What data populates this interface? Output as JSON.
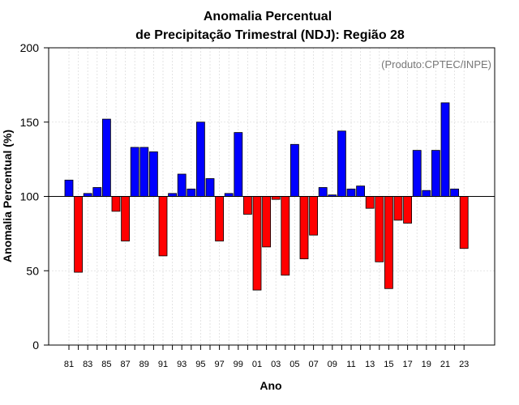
{
  "chart_data": {
    "type": "bar",
    "title_line1": "Anomalia Percentual",
    "title_line2": "de Precipitação Trimestral (NDJ): Região 28",
    "credit": "(Produto:CPTEC/INPE)",
    "xlabel": "Ano",
    "ylabel": "Anomalia Percentual (%)",
    "ylim": [
      0,
      200
    ],
    "yticks": [
      "0",
      "50",
      "100",
      "150",
      "200"
    ],
    "baseline": 100,
    "grid": true,
    "colors": {
      "above": "#0000ff",
      "below": "#ff0000"
    },
    "categories": [
      "81",
      "82",
      "83",
      "84",
      "85",
      "86",
      "87",
      "88",
      "89",
      "90",
      "91",
      "92",
      "93",
      "94",
      "95",
      "96",
      "97",
      "98",
      "99",
      "00",
      "01",
      "02",
      "03",
      "04",
      "05",
      "06",
      "07",
      "08",
      "09",
      "10",
      "11",
      "12",
      "13",
      "14",
      "15",
      "16",
      "17",
      "18",
      "19",
      "20",
      "21",
      "22",
      "23"
    ],
    "xtick_labels": [
      "81",
      "83",
      "85",
      "87",
      "89",
      "91",
      "93",
      "95",
      "97",
      "99",
      "01",
      "03",
      "05",
      "07",
      "09",
      "11",
      "13",
      "15",
      "17",
      "19",
      "21",
      "23"
    ],
    "values": [
      111,
      49,
      102,
      106,
      152,
      90,
      70,
      133,
      133,
      130,
      60,
      102,
      115,
      105,
      150,
      112,
      70,
      102,
      143,
      88,
      37,
      66,
      98,
      47,
      135,
      58,
      74,
      106,
      101,
      144,
      105,
      107,
      92,
      56,
      38,
      84,
      82,
      131,
      104,
      131,
      163,
      105,
      65
    ]
  }
}
